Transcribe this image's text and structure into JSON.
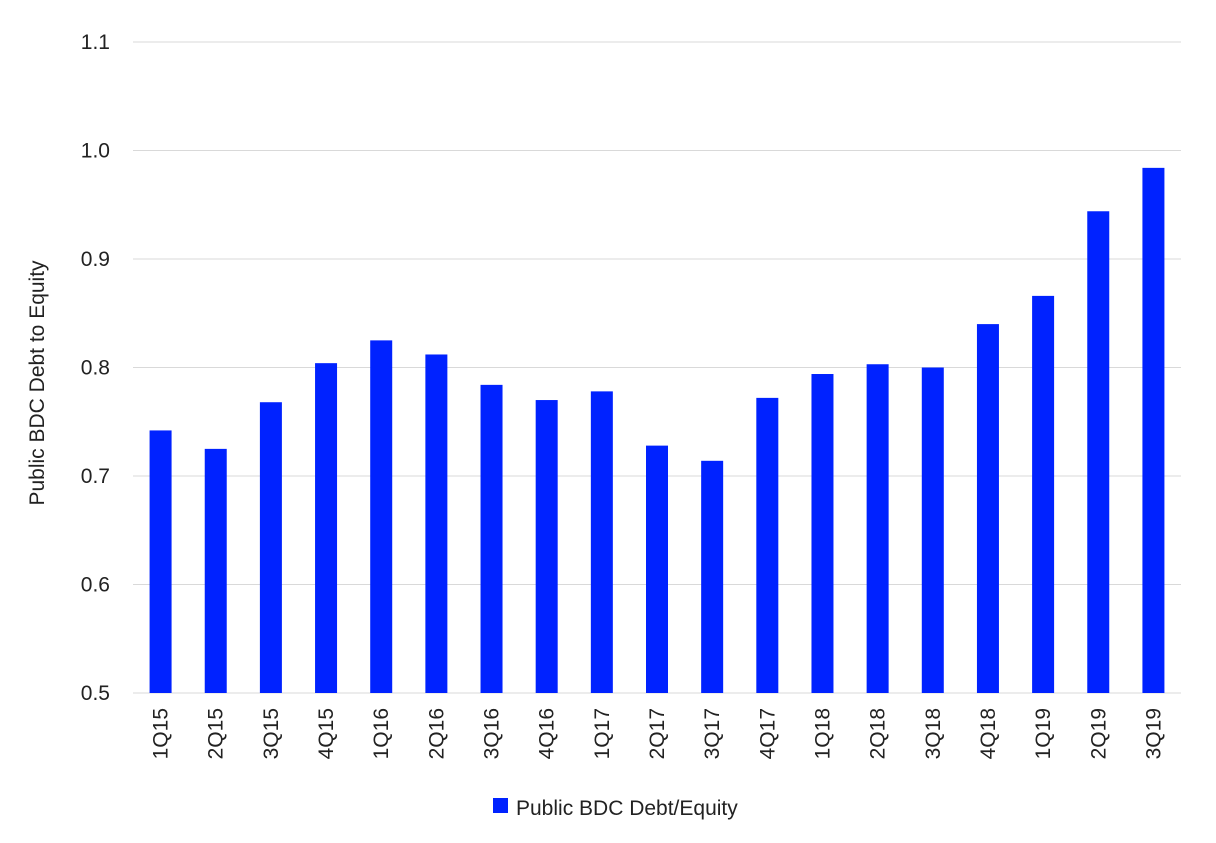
{
  "chart_data": {
    "type": "bar",
    "title": "",
    "ylabel": "Public BDC Debt to Equity",
    "xlabel": "",
    "categories": [
      "1Q15",
      "2Q15",
      "3Q15",
      "4Q15",
      "1Q16",
      "2Q16",
      "3Q16",
      "4Q16",
      "1Q17",
      "2Q17",
      "3Q17",
      "4Q17",
      "1Q18",
      "2Q18",
      "3Q18",
      "4Q18",
      "1Q19",
      "2Q19",
      "3Q19"
    ],
    "series": [
      {
        "name": "Public BDC Debt/Equity",
        "color": "#0022ff",
        "values": [
          0.742,
          0.725,
          0.768,
          0.804,
          0.825,
          0.812,
          0.784,
          0.77,
          0.778,
          0.728,
          0.714,
          0.772,
          0.794,
          0.803,
          0.8,
          0.84,
          0.866,
          0.944,
          0.984
        ]
      }
    ],
    "ylim": [
      0.5,
      1.1
    ],
    "yticks": [
      "0.5",
      "0.6",
      "0.7",
      "0.8",
      "0.9",
      "1.0",
      "1.1"
    ],
    "grid": true,
    "legend_position": "bottom-center"
  }
}
